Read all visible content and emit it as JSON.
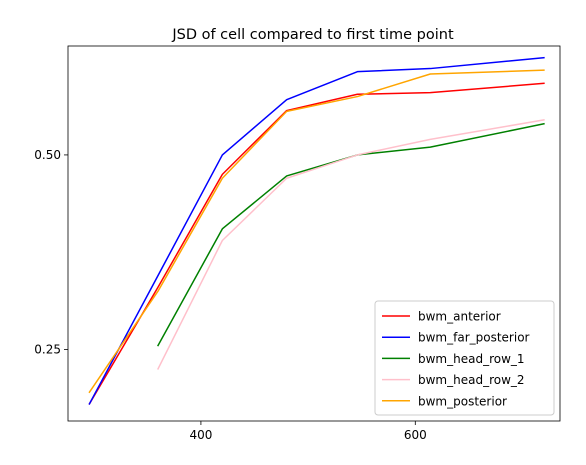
{
  "chart_data": {
    "type": "line",
    "title": "JSD of cell compared to first time point",
    "xlabel": "",
    "ylabel": "",
    "xlim": [
      276,
      735
    ],
    "ylim": [
      0.158,
      0.64
    ],
    "xticks": [
      400,
      600
    ],
    "xtick_labels": [
      "400",
      "600"
    ],
    "yticks": [
      0.25,
      0.5
    ],
    "ytick_labels": [
      "0.25",
      "0.50"
    ],
    "grid": false,
    "legend_position": "lower-right",
    "series": [
      {
        "name": "bwm_anterior",
        "color": "#ff0000",
        "x": [
          296,
          360,
          420,
          480,
          546,
          614,
          720
        ],
        "y": [
          0.18,
          0.33,
          0.475,
          0.557,
          0.578,
          0.58,
          0.592
        ]
      },
      {
        "name": "bwm_far_posterior",
        "color": "#0000ff",
        "x": [
          296,
          360,
          420,
          480,
          546,
          614,
          720
        ],
        "y": [
          0.18,
          0.345,
          0.5,
          0.571,
          0.607,
          0.611,
          0.625
        ]
      },
      {
        "name": "bwm_head_row_1",
        "color": "#008000",
        "x": [
          360,
          420,
          480,
          546,
          614,
          720
        ],
        "y": [
          0.255,
          0.405,
          0.473,
          0.5,
          0.51,
          0.54
        ]
      },
      {
        "name": "bwm_head_row_2",
        "color": "#ffc0cb",
        "x": [
          360,
          420,
          480,
          546,
          614,
          720
        ],
        "y": [
          0.225,
          0.39,
          0.47,
          0.5,
          0.52,
          0.545
        ]
      },
      {
        "name": "bwm_posterior",
        "color": "#ffa500",
        "x": [
          296,
          360,
          420,
          480,
          546,
          614,
          720
        ],
        "y": [
          0.195,
          0.325,
          0.47,
          0.556,
          0.575,
          0.604,
          0.609
        ]
      }
    ]
  }
}
